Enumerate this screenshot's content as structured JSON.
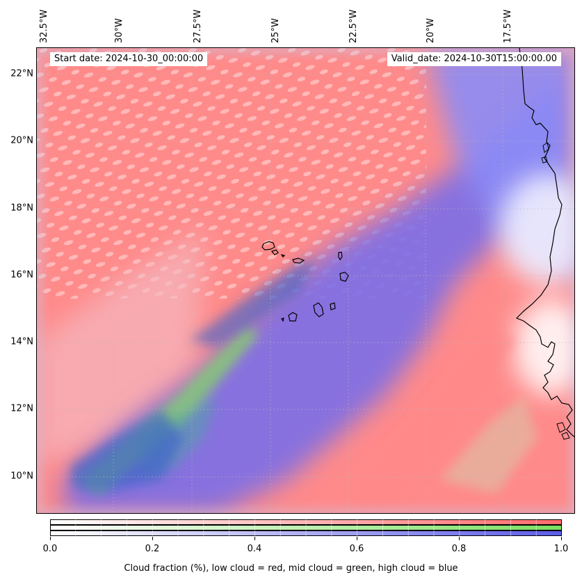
{
  "map": {
    "start_date_label": "Start date: 2024-10-30_00:00:00",
    "valid_date_label": "Valid_date: 2024-10-30T15:00:00.00",
    "longitude_labels": [
      "32.5°W",
      "30°W",
      "27.5°W",
      "25°W",
      "22.5°W",
      "20°W",
      "17.5°W"
    ],
    "latitude_labels": [
      "22°N",
      "20°N",
      "18°N",
      "16°N",
      "14°N",
      "12°N",
      "10°N"
    ],
    "features": [
      "Cape Verde islands",
      "West African coastline"
    ],
    "colors": {
      "low_cloud": "#ff8080",
      "mid_cloud": "#80e060",
      "high_cloud": "#7070f0",
      "clear": "#ffffff"
    }
  },
  "colorbar": {
    "ticks": [
      "0.0",
      "0.2",
      "0.4",
      "0.6",
      "0.8",
      "1.0"
    ],
    "label": "Cloud fraction (%), low cloud = red, mid cloud = green, high cloud = blue",
    "low_color": "#ff6b6b",
    "mid_color": "#7ae060",
    "high_color": "#5c5ce8"
  }
}
